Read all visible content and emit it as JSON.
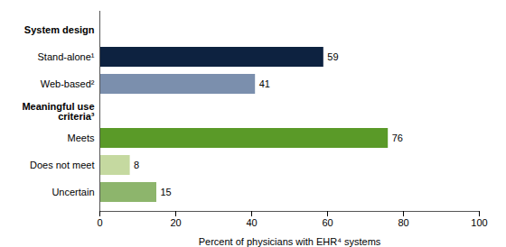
{
  "chart_data": {
    "type": "bar",
    "orientation": "horizontal",
    "categories": [
      "System design",
      "Stand-alone¹",
      "Web-based²",
      "Meaningful use\ncriteria³",
      "Meets",
      "Does not meet",
      "Uncertain"
    ],
    "values": [
      null,
      59,
      41,
      null,
      76,
      8,
      15
    ],
    "colors": [
      null,
      "#0d2240",
      "#7b8fad",
      null,
      "#5a9a28",
      "#c5d9a0",
      "#8db56c"
    ],
    "xlabel": "Percent of physicians with EHR⁴ systems",
    "xlim": [
      0,
      100
    ],
    "xticks": [
      0,
      20,
      40,
      60,
      80,
      100
    ],
    "grid": false,
    "data_labels": true
  }
}
